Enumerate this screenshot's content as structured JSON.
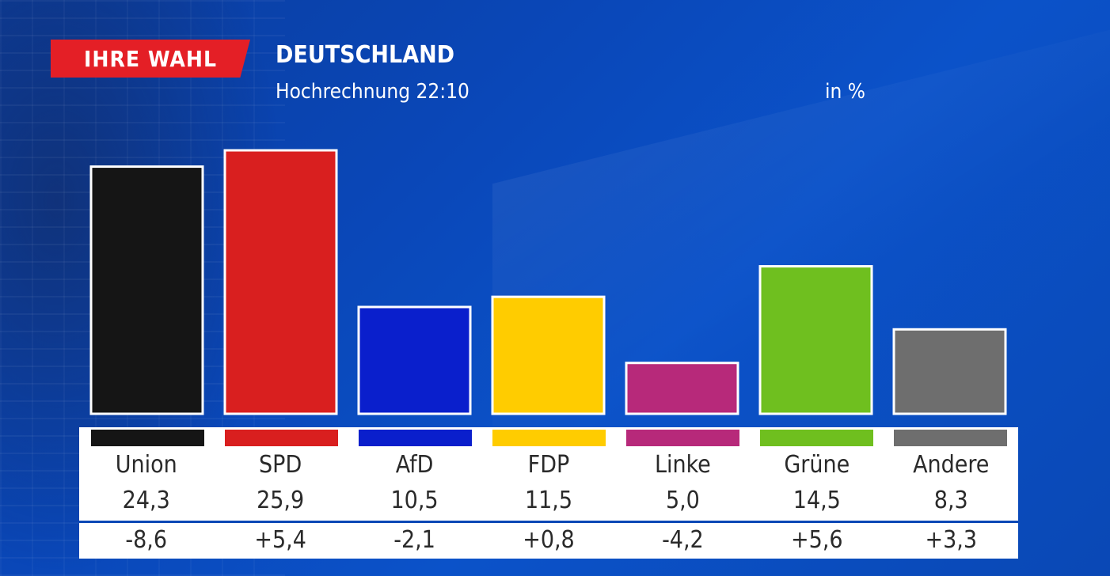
{
  "badge": "IHRE WAHL",
  "title": "DEUTSCHLAND",
  "subtitle": "Hochrechnung 22:10",
  "unit_label": "in %",
  "chart_data": {
    "type": "bar",
    "title": "DEUTSCHLAND",
    "subtitle": "Hochrechnung 22:10",
    "ylabel": "in %",
    "ylim": [
      0,
      27
    ],
    "categories": [
      "Union",
      "SPD",
      "AfD",
      "FDP",
      "Linke",
      "Grüne",
      "Andere"
    ],
    "values": [
      24.3,
      25.9,
      10.5,
      11.5,
      5.0,
      14.5,
      8.3
    ],
    "value_labels": [
      "24,3",
      "25,9",
      "10,5",
      "11,5",
      "5,0",
      "14,5",
      "8,3"
    ],
    "changes": [
      "-8,6",
      "+5,4",
      "-2,1",
      "+0,8",
      "-4,2",
      "+5,6",
      "+3,3"
    ],
    "colors": [
      "#151515",
      "#d91f1f",
      "#0a1fcc",
      "#ffcc00",
      "#b7297a",
      "#6fbf1f",
      "#6e6e6e"
    ]
  }
}
